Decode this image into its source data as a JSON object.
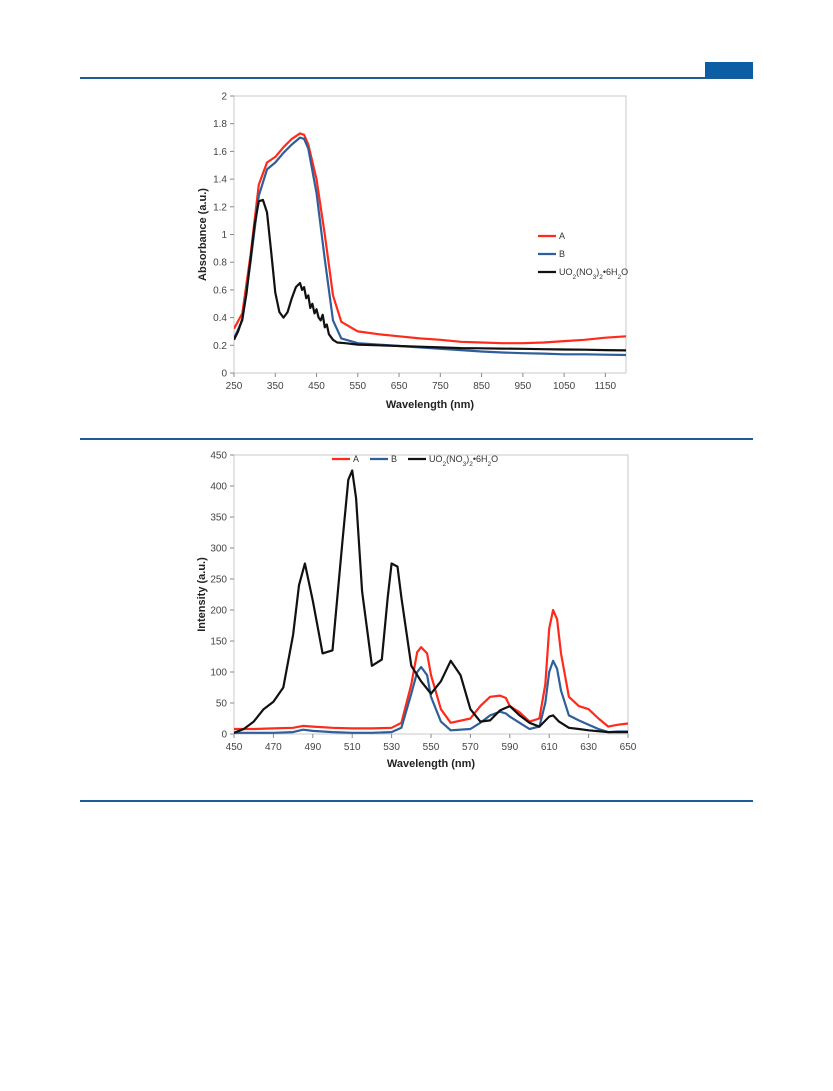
{
  "colors": {
    "accent": "#0b5ea3",
    "rule": "#1d5c95",
    "A": "#ff2a1a",
    "B": "#2e5f9a",
    "U": "#111111"
  },
  "chart_data": [
    {
      "type": "line",
      "xlabel": "Wavelength (nm)",
      "ylabel": "Absorbance (a.u.)",
      "xlim": [
        250,
        1200
      ],
      "ylim": [
        0,
        2
      ],
      "xticks": [
        "250",
        "350",
        "450",
        "550",
        "650",
        "750",
        "850",
        "950",
        "1050",
        "1150"
      ],
      "yticks": [
        "0",
        "0.2",
        "0.4",
        "0.6",
        "0.8",
        "1",
        "1.2",
        "1.4",
        "1.6",
        "1.8",
        "2"
      ],
      "legend_position": "right",
      "series": [
        {
          "name": "A",
          "color": "#ff2a1a",
          "x": [
            250,
            270,
            290,
            310,
            330,
            350,
            370,
            390,
            410,
            420,
            430,
            450,
            470,
            490,
            510,
            550,
            600,
            650,
            700,
            750,
            800,
            850,
            900,
            950,
            1000,
            1050,
            1100,
            1150,
            1200
          ],
          "y": [
            0.32,
            0.43,
            0.85,
            1.36,
            1.52,
            1.56,
            1.63,
            1.69,
            1.73,
            1.72,
            1.65,
            1.4,
            1.0,
            0.56,
            0.37,
            0.3,
            0.28,
            0.265,
            0.25,
            0.24,
            0.225,
            0.22,
            0.215,
            0.215,
            0.22,
            0.23,
            0.24,
            0.255,
            0.265
          ]
        },
        {
          "name": "B",
          "color": "#2e5f9a",
          "x": [
            250,
            270,
            290,
            310,
            330,
            350,
            370,
            390,
            410,
            420,
            430,
            450,
            470,
            490,
            510,
            550,
            600,
            650,
            700,
            750,
            800,
            850,
            900,
            950,
            1000,
            1050,
            1100,
            1150,
            1200
          ],
          "y": [
            0.25,
            0.38,
            0.8,
            1.28,
            1.47,
            1.52,
            1.59,
            1.65,
            1.7,
            1.69,
            1.62,
            1.3,
            0.82,
            0.38,
            0.25,
            0.215,
            0.205,
            0.195,
            0.185,
            0.175,
            0.165,
            0.155,
            0.148,
            0.143,
            0.14,
            0.135,
            0.135,
            0.132,
            0.13
          ]
        },
        {
          "name": "UO2(NO3)2•6H2O",
          "color": "#111111",
          "x": [
            250,
            260,
            270,
            280,
            290,
            300,
            310,
            320,
            330,
            340,
            350,
            360,
            370,
            380,
            390,
            400,
            410,
            415,
            420,
            425,
            430,
            435,
            440,
            445,
            450,
            455,
            460,
            465,
            470,
            475,
            480,
            490,
            500,
            520,
            550,
            600,
            650,
            700,
            750,
            800,
            850,
            900,
            950,
            1000,
            1050,
            1100,
            1150,
            1200
          ],
          "y": [
            0.24,
            0.3,
            0.39,
            0.57,
            0.82,
            1.07,
            1.24,
            1.25,
            1.16,
            0.88,
            0.58,
            0.44,
            0.4,
            0.44,
            0.54,
            0.62,
            0.65,
            0.6,
            0.62,
            0.54,
            0.56,
            0.47,
            0.5,
            0.43,
            0.46,
            0.4,
            0.38,
            0.42,
            0.33,
            0.35,
            0.28,
            0.24,
            0.22,
            0.215,
            0.205,
            0.2,
            0.195,
            0.19,
            0.185,
            0.18,
            0.178,
            0.176,
            0.175,
            0.172,
            0.17,
            0.168,
            0.165,
            0.163
          ]
        }
      ]
    },
    {
      "type": "line",
      "xlabel": "Wavelength (nm)",
      "ylabel": "Intensity (a.u.)",
      "xlim": [
        450,
        650
      ],
      "ylim": [
        0,
        450
      ],
      "xticks": [
        "450",
        "470",
        "490",
        "510",
        "530",
        "550",
        "570",
        "590",
        "610",
        "630",
        "650"
      ],
      "yticks": [
        "0",
        "50",
        "100",
        "150",
        "200",
        "250",
        "300",
        "350",
        "400",
        "450"
      ],
      "legend_position": "top",
      "series": [
        {
          "name": "A",
          "color": "#ff2a1a",
          "x": [
            450,
            460,
            470,
            480,
            485,
            490,
            500,
            510,
            520,
            530,
            535,
            540,
            543,
            545,
            548,
            550,
            555,
            560,
            570,
            575,
            580,
            585,
            588,
            590,
            595,
            600,
            605,
            608,
            610,
            612,
            614,
            616,
            620,
            625,
            630,
            635,
            640,
            645,
            650
          ],
          "y": [
            8,
            8,
            9,
            10,
            13,
            12,
            10,
            9,
            9,
            10,
            18,
            80,
            132,
            140,
            130,
            95,
            40,
            18,
            25,
            45,
            60,
            62,
            58,
            45,
            35,
            20,
            25,
            80,
            170,
            200,
            185,
            130,
            60,
            45,
            40,
            25,
            12,
            15,
            17
          ]
        },
        {
          "name": "B",
          "color": "#2e5f9a",
          "x": [
            450,
            460,
            470,
            480,
            485,
            490,
            500,
            510,
            520,
            530,
            535,
            540,
            543,
            545,
            548,
            550,
            555,
            560,
            570,
            575,
            580,
            585,
            588,
            590,
            595,
            600,
            605,
            608,
            610,
            612,
            614,
            616,
            620,
            625,
            630,
            635,
            640,
            645,
            650
          ],
          "y": [
            2,
            2,
            2,
            3,
            7,
            5,
            3,
            2,
            2,
            3,
            10,
            65,
            100,
            108,
            95,
            60,
            20,
            6,
            8,
            18,
            30,
            36,
            33,
            28,
            18,
            8,
            12,
            50,
            100,
            118,
            105,
            70,
            30,
            22,
            15,
            8,
            3,
            4,
            4
          ]
        },
        {
          "name": "UO2(NO3)2•6H2O",
          "color": "#111111",
          "x": [
            450,
            455,
            460,
            465,
            470,
            475,
            480,
            483,
            486,
            490,
            495,
            500,
            505,
            508,
            510,
            512,
            515,
            520,
            525,
            528,
            530,
            533,
            535,
            540,
            545,
            550,
            555,
            560,
            565,
            570,
            575,
            580,
            585,
            590,
            595,
            600,
            605,
            610,
            612,
            615,
            620,
            625,
            630,
            640,
            650
          ],
          "y": [
            2,
            8,
            20,
            40,
            52,
            75,
            160,
            240,
            275,
            215,
            130,
            135,
            310,
            410,
            425,
            380,
            230,
            110,
            120,
            220,
            275,
            270,
            220,
            110,
            85,
            65,
            85,
            118,
            95,
            40,
            20,
            22,
            38,
            45,
            30,
            18,
            12,
            28,
            30,
            20,
            10,
            8,
            6,
            3,
            3
          ]
        }
      ]
    }
  ]
}
